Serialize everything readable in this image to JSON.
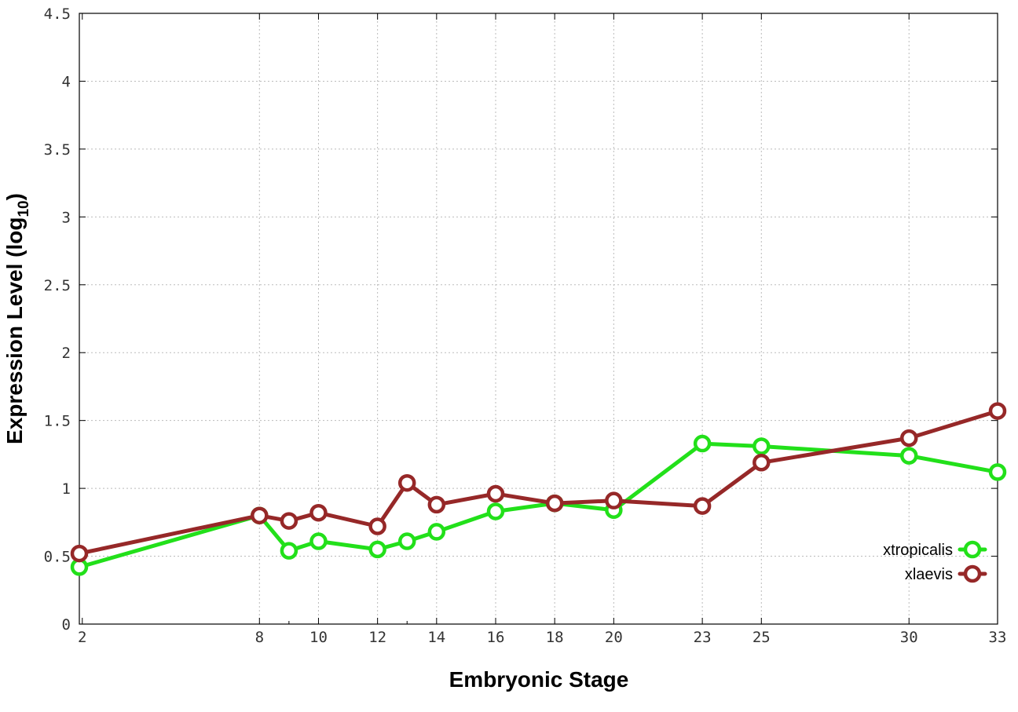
{
  "chart_data": {
    "type": "line",
    "title": "",
    "xlabel": "Embryonic Stage",
    "ylabel_main": "Expression Level (log",
    "ylabel_sub": "10",
    "ylabel_close": ")",
    "xlim": [
      1.9,
      33
    ],
    "ylim": [
      0,
      4.5
    ],
    "xticks": [
      2,
      8,
      10,
      12,
      14,
      16,
      18,
      20,
      23,
      25,
      30,
      33
    ],
    "xticks_minor": [
      9,
      13
    ],
    "yticks": [
      0,
      0.5,
      1,
      1.5,
      2,
      2.5,
      3,
      3.5,
      4,
      4.5
    ],
    "ytick_labels": [
      "0",
      "0.5",
      "1",
      "1.5",
      "2",
      "2.5",
      "3",
      "3.5",
      "4",
      "4.5"
    ],
    "grid": true,
    "legend_position": "bottom-right",
    "series": [
      {
        "name": "xtropicalis",
        "color": "#22e01a",
        "x": [
          1.9,
          8,
          9,
          10,
          12,
          13,
          14,
          16,
          18,
          20,
          23,
          25,
          30,
          33
        ],
        "y": [
          0.42,
          0.8,
          0.54,
          0.61,
          0.55,
          0.61,
          0.68,
          0.83,
          0.89,
          0.84,
          1.33,
          1.31,
          1.24,
          1.12
        ]
      },
      {
        "name": "xlaevis",
        "color": "#962828",
        "x": [
          1.9,
          8,
          9,
          10,
          12,
          13,
          14,
          16,
          18,
          20,
          23,
          25,
          30,
          33
        ],
        "y": [
          0.52,
          0.8,
          0.76,
          0.82,
          0.72,
          1.04,
          0.88,
          0.96,
          0.89,
          0.91,
          0.87,
          1.19,
          1.37,
          1.57
        ]
      }
    ]
  }
}
